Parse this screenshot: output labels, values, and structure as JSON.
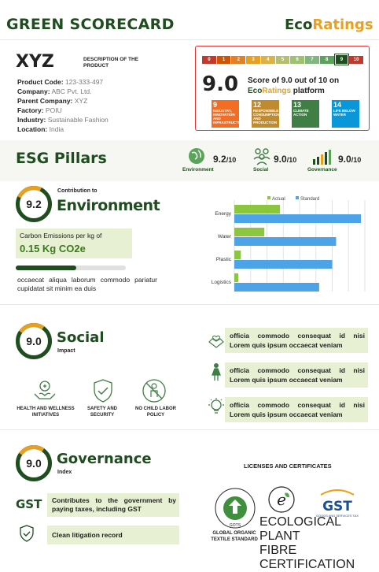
{
  "header": {
    "title": "GREEN SCORECARD",
    "brand_a": "Eco",
    "brand_b": "Ratings"
  },
  "company": {
    "name": "XYZ",
    "description": "DESCRIPTION OF THE PRODUCT",
    "fields": [
      {
        "label": "Product Code:",
        "value": "123-333-497"
      },
      {
        "label": "Company:",
        "value": "ABC Pvt. Ltd."
      },
      {
        "label": "Parent Company:",
        "value": "XYZ"
      },
      {
        "label": "Factory:",
        "value": "POIU"
      },
      {
        "label": "Industry:",
        "value": "Sustainable Fashion"
      },
      {
        "label": "Location:",
        "value": "India"
      }
    ]
  },
  "score_card": {
    "scale": [
      "0",
      "1",
      "2",
      "3",
      "4",
      "5",
      "6",
      "7",
      "8",
      "9",
      "10"
    ],
    "scale_colors": [
      "#c0392b",
      "#d35400",
      "#e67e22",
      "#e8a020",
      "#d9b34a",
      "#b7bf6a",
      "#9fc270",
      "#7fb77e",
      "#5aa35a",
      "#1f4d1f",
      "#c0392b"
    ],
    "score_value": 9,
    "score": "9.0",
    "text_prefix": "Score of 9.0 out of 10 on",
    "text_brand_a": "Eco",
    "text_brand_b": "Ratings",
    "text_suffix": "platform",
    "sdgs": [
      {
        "num": "9",
        "label": "INDUSTRY, INNOVATION AND INFRASTRUCTURE",
        "color": "#f36d25"
      },
      {
        "num": "12",
        "label": "RESPONSIBLE CONSUMPTION AND PRODUCTION",
        "color": "#bf8b2e"
      },
      {
        "num": "13",
        "label": "CLIMATE ACTION",
        "color": "#3f7e44"
      },
      {
        "num": "14",
        "label": "LIFE BELOW WATER",
        "color": "#0a97d9"
      }
    ]
  },
  "pillars": {
    "title": "ESG Pillars",
    "items": [
      {
        "name": "Environment",
        "score": "9.2",
        "suffix": "/10"
      },
      {
        "name": "Social",
        "score": "9.0",
        "suffix": "/10"
      },
      {
        "name": "Governance",
        "score": "9.0",
        "suffix": "/10"
      }
    ]
  },
  "environment": {
    "score": "9.2",
    "pretitle": "Contribution to",
    "title": "Environment",
    "metric_label": "Carbon Emissions per kg of",
    "metric_value": "0.15 Kg CO2e",
    "progress_pct": 0.55,
    "description": "occaecat aliqua laborum commodo pariatur cupidatat sit minim ea duis"
  },
  "chart_data": {
    "type": "bar",
    "orientation": "horizontal",
    "categories": [
      "Energy",
      "Water",
      "Plastic",
      "Logistics"
    ],
    "series": [
      {
        "name": "Actual",
        "color": "#8cc63f",
        "values": [
          35,
          23,
          5,
          3
        ]
      },
      {
        "name": "Standard",
        "color": "#4da3e8",
        "values": [
          97,
          78,
          75,
          65
        ]
      }
    ],
    "xlim": [
      0,
      100
    ],
    "legend": "top",
    "grid": true
  },
  "social": {
    "score": "9.0",
    "title": "Social",
    "subtitle": "Impact",
    "initiatives": [
      {
        "label": "HEALTH AND WELLNESS INITIATIVES",
        "icon": "hands-heart-icon"
      },
      {
        "label": "SAFETY AND SECURITY",
        "icon": "shield-check-icon"
      },
      {
        "label": "NO CHILD LABOR POLICY",
        "icon": "no-child-icon"
      }
    ],
    "notes": [
      {
        "line1": "officia commodo consequat id nisi",
        "line2": "Lorem quis ipsum occaecat veniam"
      },
      {
        "line1": "officia commodo consequat id nisi",
        "line2": "Lorem quis ipsum occaecat veniam"
      },
      {
        "line1": "officia commodo consequat id nisi",
        "line2": "Lorem quis ipsum occaecat veniam"
      }
    ]
  },
  "governance": {
    "score": "9.0",
    "title": "Governance",
    "subtitle": "Index",
    "gst_label": "GST",
    "gst_text": "Contributes to the government by paying taxes, including GST",
    "litigation": "Clean litigation record",
    "licenses_title": "LICENSES AND CERTIFICATES",
    "certs": [
      {
        "name": "GOTS",
        "caption": "GLOBAL ORGANIC TEXTILE STANDARD"
      },
      {
        "name": "e",
        "caption": "ECOLOGICAL PLANT FIBRE CERTIFICATION"
      },
      {
        "name": "GST",
        "caption": "GOODS AND SERVICES TAX"
      }
    ]
  }
}
